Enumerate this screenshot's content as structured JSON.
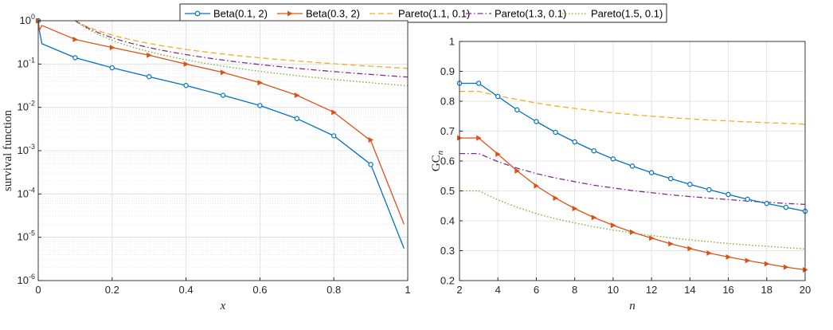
{
  "legend": [
    {
      "label": "Beta(0.1, 2)",
      "color": "#0072BD",
      "style": "solid",
      "marker": "circle"
    },
    {
      "label": "Beta(0.3, 2)",
      "color": "#D95319",
      "style": "solid",
      "marker": "triangle"
    },
    {
      "label": "Pareto(1.1, 0.1)",
      "color": "#EDB120",
      "style": "dashed",
      "marker": "none"
    },
    {
      "label": "Pareto(1.3, 0.1)",
      "color": "#7E2F8E",
      "style": "dashdot",
      "marker": "none"
    },
    {
      "label": "Pareto(1.5, 0.1)",
      "color": "#77AC30",
      "style": "dotted",
      "marker": "none"
    }
  ],
  "chart_data": [
    {
      "type": "line",
      "yscale": "log",
      "xlabel": "x",
      "ylabel": "survival function",
      "xlim": [
        0,
        1
      ],
      "ylim": [
        1e-06,
        1
      ],
      "xticks": [
        "0",
        "0.2",
        "0.4",
        "0.6",
        "0.8",
        "1"
      ],
      "yticks": [
        {
          "base": "10",
          "exp": "-6"
        },
        {
          "base": "10",
          "exp": "-5"
        },
        {
          "base": "10",
          "exp": "-4"
        },
        {
          "base": "10",
          "exp": "-3"
        },
        {
          "base": "10",
          "exp": "-2"
        },
        {
          "base": "10",
          "exp": "-1"
        },
        {
          "base": "10",
          "exp": "0"
        }
      ],
      "grid": true,
      "series": [
        {
          "name": "Beta(0.1, 2)",
          "marker_x": [
            0,
            0.1,
            0.2,
            0.3,
            0.4,
            0.5,
            0.6,
            0.7,
            0.8,
            0.9
          ],
          "marker_y": [
            1,
            0.14,
            0.082,
            0.051,
            0.032,
            0.019,
            0.011,
            0.0055,
            0.0022,
            0.00048
          ],
          "end": [
            0.99,
            5.5e-06
          ]
        },
        {
          "name": "Beta(0.3, 2)",
          "marker_x": [
            0,
            0.1,
            0.2,
            0.3,
            0.4,
            0.5,
            0.6,
            0.7,
            0.8,
            0.9
          ],
          "marker_y": [
            1,
            0.37,
            0.24,
            0.16,
            0.1,
            0.064,
            0.037,
            0.019,
            0.0077,
            0.0017
          ],
          "end": [
            0.99,
            2e-05
          ]
        },
        {
          "name": "Pareto(1.1, 0.1)",
          "x_min": 0.1,
          "x_max": 1
        },
        {
          "name": "Pareto(1.3, 0.1)",
          "x_min": 0.1,
          "x_max": 1
        },
        {
          "name": "Pareto(1.5, 0.1)",
          "x_min": 0.1,
          "x_max": 1
        }
      ]
    },
    {
      "type": "line",
      "xlabel": "n",
      "ylabel": "GC",
      "ylabel_subscript": "n",
      "xlim": [
        2,
        20
      ],
      "ylim": [
        0.2,
        1
      ],
      "xticks": [
        "2",
        "4",
        "6",
        "8",
        "10",
        "12",
        "14",
        "16",
        "18",
        "20"
      ],
      "yticks": [
        "0.2",
        "0.3",
        "0.4",
        "0.5",
        "0.6",
        "0.7",
        "0.8",
        "0.9",
        "1"
      ],
      "grid": true,
      "x": [
        2,
        3,
        4,
        5,
        6,
        7,
        8,
        9,
        10,
        11,
        12,
        13,
        14,
        15,
        16,
        17,
        18,
        19,
        20
      ],
      "series": [
        {
          "name": "Beta(0.1, 2)",
          "values": [
            0.86,
            0.86,
            0.816,
            0.771,
            0.732,
            0.696,
            0.664,
            0.634,
            0.607,
            0.583,
            0.561,
            0.541,
            0.522,
            0.504,
            0.488,
            0.472,
            0.458,
            0.445,
            0.432
          ]
        },
        {
          "name": "Beta(0.3, 2)",
          "values": [
            0.677,
            0.677,
            0.623,
            0.567,
            0.517,
            0.476,
            0.441,
            0.411,
            0.385,
            0.362,
            0.342,
            0.323,
            0.307,
            0.292,
            0.279,
            0.267,
            0.256,
            0.245,
            0.236
          ]
        },
        {
          "name": "Pareto(1.1, 0.1)",
          "values": [
            0.833,
            0.833,
            0.818,
            0.806,
            0.794,
            0.784,
            0.776,
            0.768,
            0.761,
            0.755,
            0.75,
            0.745,
            0.741,
            0.737,
            0.734,
            0.731,
            0.728,
            0.726,
            0.723
          ]
        },
        {
          "name": "Pareto(1.3, 0.1)",
          "values": [
            0.625,
            0.625,
            0.598,
            0.576,
            0.558,
            0.543,
            0.531,
            0.519,
            0.51,
            0.501,
            0.494,
            0.487,
            0.481,
            0.476,
            0.471,
            0.466,
            0.462,
            0.458,
            0.455
          ]
        },
        {
          "name": "Pareto(1.5, 0.1)",
          "values": [
            0.5,
            0.5,
            0.47,
            0.445,
            0.424,
            0.407,
            0.393,
            0.38,
            0.369,
            0.359,
            0.351,
            0.343,
            0.336,
            0.33,
            0.324,
            0.319,
            0.315,
            0.31,
            0.306
          ]
        }
      ]
    }
  ]
}
